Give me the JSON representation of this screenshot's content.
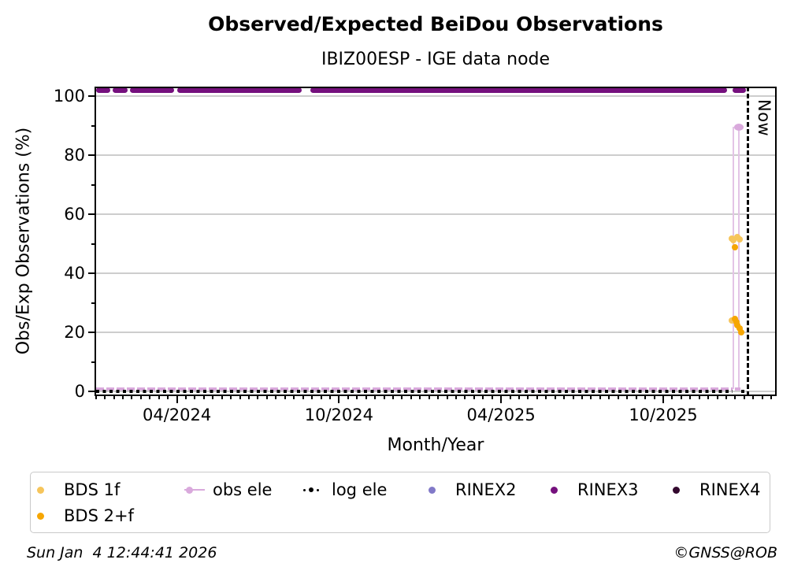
{
  "title": "Observed/Expected BeiDou Observations",
  "subtitle": "IBIZ00ESP - IGE data node",
  "now_label": "Now",
  "footer": {
    "timestamp": "Sun Jan  4 12:44:41 2026",
    "credit": "©GNSS@ROB"
  },
  "colors": {
    "bds_1f": "#f6c55b",
    "bds_2f": "#f6a602",
    "obs_ele": "#d9a9dc",
    "obs_ele_stem": "#e3c4e6",
    "log_ele": "#000000",
    "rinex2": "#8179c8",
    "rinex3": "#75107d",
    "rinex4": "#33082e",
    "grid": "#cdcdcd"
  },
  "legend": {
    "items": [
      {
        "label": "BDS 1f",
        "marker": "dot",
        "color": "#f6c55b"
      },
      {
        "label": "obs ele",
        "marker": "line-dot",
        "color": "#d9a9dc"
      },
      {
        "label": "log ele",
        "marker": "dotted-line",
        "color": "#000000"
      },
      {
        "label": "RINEX2",
        "marker": "dot",
        "color": "#8179c8"
      },
      {
        "label": "RINEX3",
        "marker": "dot",
        "color": "#75107d"
      },
      {
        "label": "RINEX4",
        "marker": "dot",
        "color": "#33082e"
      },
      {
        "label": "BDS 2+f",
        "marker": "dot",
        "color": "#f6a602"
      }
    ]
  },
  "chart_data": {
    "type": "scatter",
    "title": "Observed/Expected BeiDou Observations",
    "subtitle": "IBIZ00ESP - IGE data node",
    "xlabel": "Month/Year",
    "ylabel": "Obs/Exp Observations (%)",
    "x_tick_labels": [
      "04/2024",
      "10/2024",
      "04/2025",
      "10/2025"
    ],
    "x_tick_months_since_jan2024": [
      3,
      9,
      15,
      21
    ],
    "y_ticks": [
      0,
      20,
      40,
      60,
      80,
      100
    ],
    "y_minor_ticks": [
      10,
      30,
      50,
      70,
      90
    ],
    "ylim": [
      -1.6,
      103.2
    ],
    "xlim_months_since_jan2024": [
      -0.05,
      25.2
    ],
    "grid": true,
    "legend_position": "bottom",
    "now_date": "2026-01-04",
    "series": [
      {
        "name": "RINEX3",
        "type": "availability-segments",
        "value": 102,
        "color": "#75107d",
        "segments": [
          [
            "2024-01-01",
            "2024-01-17"
          ],
          [
            "2024-01-20",
            "2024-02-06"
          ],
          [
            "2024-02-09",
            "2024-03-28"
          ],
          [
            "2024-04-01",
            "2024-08-20"
          ],
          [
            "2024-08-30",
            "2025-12-12"
          ],
          [
            "2025-12-18",
            "2026-01-03"
          ]
        ]
      },
      {
        "name": "obs ele",
        "type": "line",
        "color": "#d9a9dc",
        "baseline_value": 0.8,
        "baseline_span": [
          "2024-01-01",
          "2025-12-18"
        ],
        "extra_segments": [
          [
            "2025-12-21",
            "2025-12-27"
          ]
        ],
        "spikes": [
          {
            "date": "2025-12-19",
            "value": 89.5,
            "marker": false
          },
          {
            "date": "2025-12-25",
            "value": 89.5,
            "marker": true
          }
        ]
      },
      {
        "name": "log ele",
        "type": "dotted-line",
        "value": 0,
        "color": "#000000",
        "span": [
          "2024-01-01",
          "2025-12-18"
        ],
        "extra_segments": [
          [
            "2025-12-28",
            "2026-01-03"
          ]
        ]
      },
      {
        "name": "BDS 1f",
        "type": "points",
        "color": "#f6c55b",
        "points": [
          [
            "2025-12-17",
            51.7
          ],
          [
            "2025-12-19",
            51.3
          ],
          [
            "2025-12-24",
            52.3
          ],
          [
            "2025-12-26",
            51.5
          ],
          [
            "2025-12-17",
            24.0
          ]
        ]
      },
      {
        "name": "BDS 2+f",
        "type": "points",
        "color": "#f6a602",
        "points": [
          [
            "2025-12-21",
            48.8
          ],
          [
            "2025-12-21",
            24.5
          ],
          [
            "2025-12-23",
            23.5
          ],
          [
            "2025-12-24",
            22.4
          ],
          [
            "2025-12-26",
            21.3
          ],
          [
            "2025-12-28",
            20.0
          ]
        ]
      },
      {
        "name": "RINEX2",
        "type": "points",
        "color": "#8179c8",
        "points": []
      },
      {
        "name": "RINEX4",
        "type": "points",
        "color": "#33082e",
        "points": []
      }
    ]
  }
}
